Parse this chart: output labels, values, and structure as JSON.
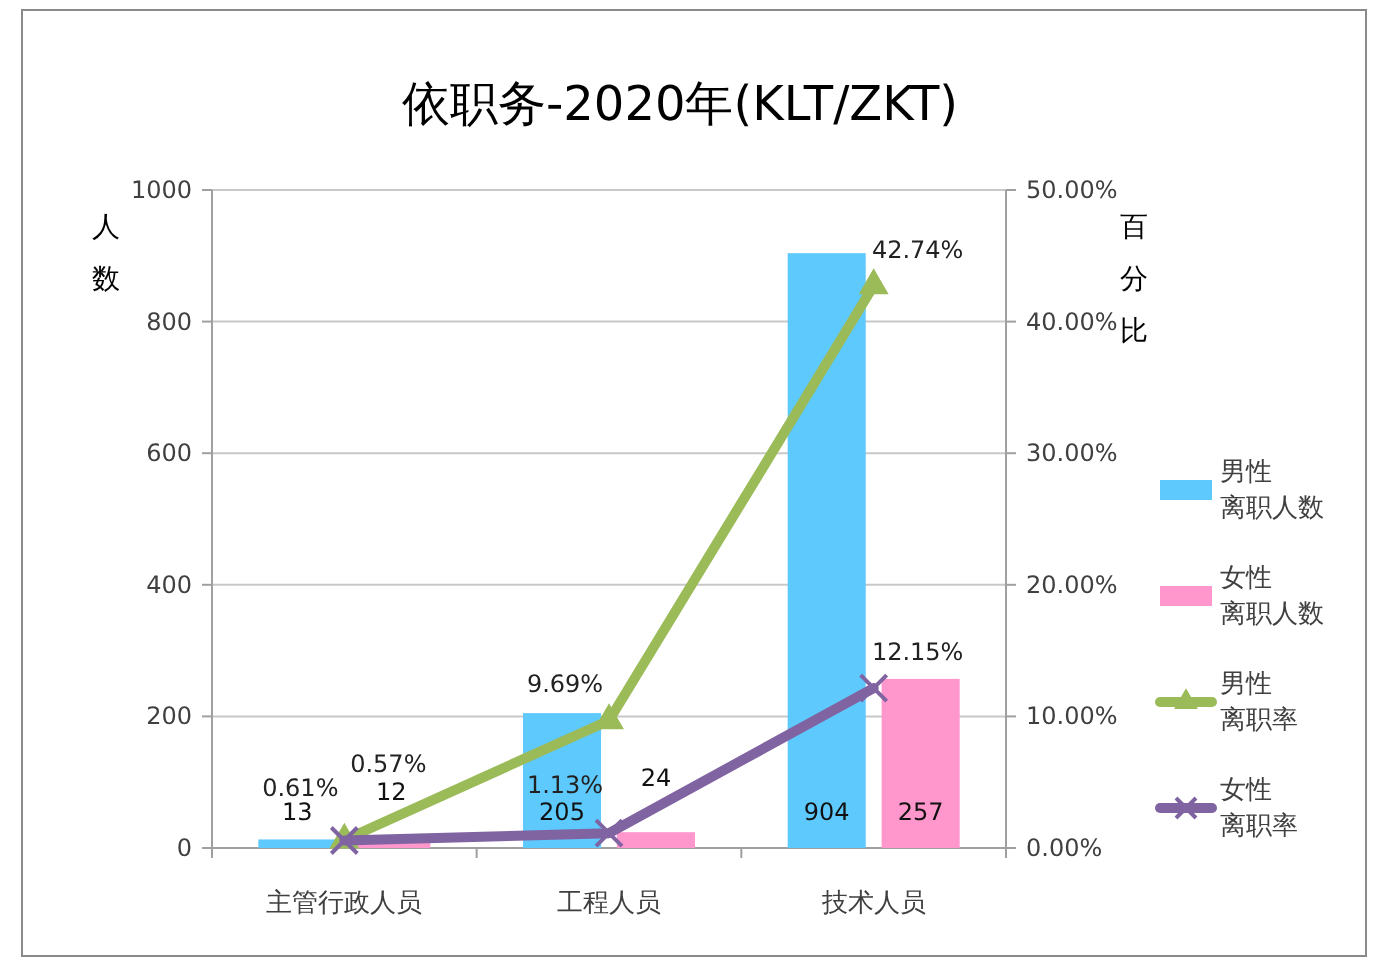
{
  "chart_data": {
    "type": "bar",
    "title": "依职务-2020年(KLT/ZKT)",
    "ylabel": "人数",
    "y2label": "百分比",
    "categories": [
      "主管行政人员",
      "工程人员",
      "技术人员"
    ],
    "series": [
      {
        "name": "男性离职人数",
        "color": "#5ec9fd",
        "values": [
          13,
          205,
          904
        ],
        "value_labels": [
          "13",
          "205",
          "904"
        ]
      },
      {
        "name": "女性离职人数",
        "color": "#ff96cc",
        "values": [
          12,
          24,
          257
        ],
        "value_labels": [
          "12",
          "24",
          "257"
        ]
      },
      {
        "name": "男性离职率",
        "type": "line",
        "axis": "y2",
        "color": "#9bbb59",
        "marker": "triangle",
        "values": [
          0.61,
          9.69,
          42.74
        ],
        "value_labels": [
          "0.61%",
          "9.69%",
          "42.74%"
        ]
      },
      {
        "name": "女性离职率",
        "type": "line",
        "axis": "y2",
        "color": "#8064a2",
        "marker": "cross",
        "values": [
          0.57,
          1.13,
          12.15
        ],
        "value_labels": [
          "0.57%",
          "1.13%",
          "12.15%"
        ]
      }
    ],
    "ylim": [
      0,
      1000
    ],
    "yticks": [
      0,
      200,
      400,
      600,
      800,
      1000
    ],
    "y2lim": [
      0,
      50
    ],
    "y2ticks": [
      {
        "value": 0,
        "label": "0.00%"
      },
      {
        "value": 10,
        "label": "10.00%"
      },
      {
        "value": 20,
        "label": "20.00%"
      },
      {
        "value": 30,
        "label": "30.00%"
      },
      {
        "value": 40,
        "label": "40.00%"
      },
      {
        "value": 50,
        "label": "50.00%"
      }
    ],
    "grid": "y",
    "legend": "right"
  }
}
